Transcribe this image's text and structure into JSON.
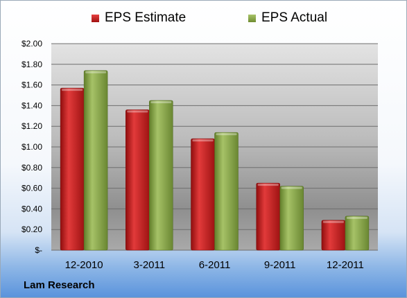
{
  "chart_data": {
    "type": "bar",
    "categories": [
      "12-2010",
      "3-2011",
      "6-2011",
      "9-2011",
      "12-2011"
    ],
    "series": [
      {
        "name": "EPS Estimate",
        "values": [
          1.57,
          1.36,
          1.08,
          0.65,
          0.29
        ],
        "color": "#c41e1e"
      },
      {
        "name": "EPS Actual",
        "values": [
          1.74,
          1.45,
          1.14,
          0.62,
          0.33
        ],
        "color": "#8aa84b"
      }
    ],
    "yticks": [
      "$-",
      "$0.20",
      "$0.40",
      "$0.60",
      "$0.80",
      "$1.00",
      "$1.20",
      "$1.40",
      "$1.60",
      "$1.80",
      "$2.00"
    ],
    "ylim": [
      0,
      2.0
    ],
    "grid": true,
    "legend_position": "top"
  },
  "footer": {
    "company": "Lam Research"
  }
}
